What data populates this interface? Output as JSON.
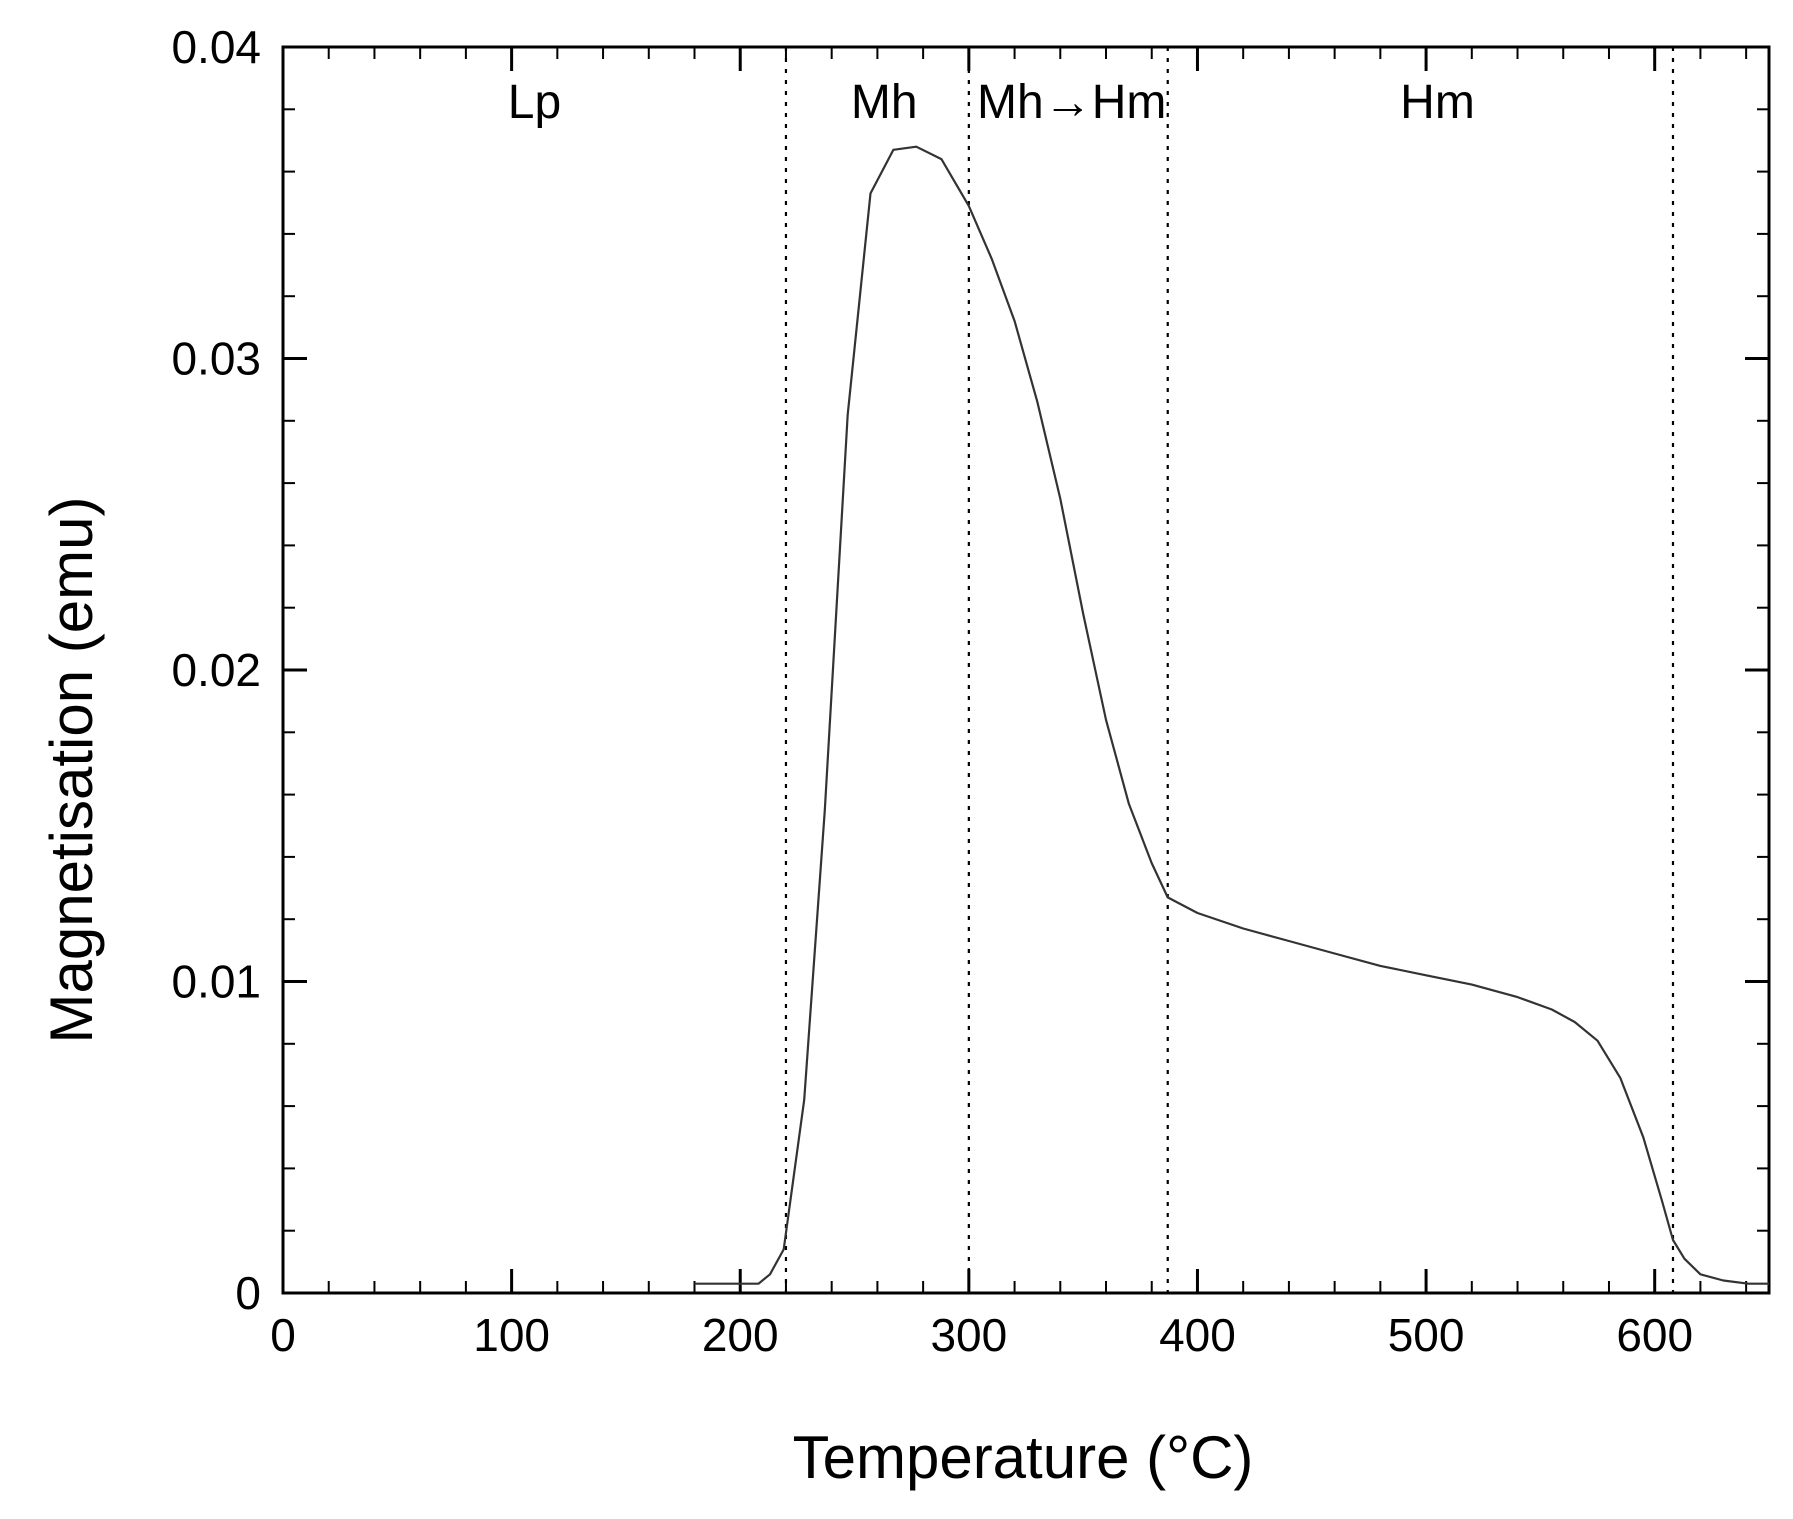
{
  "chart_data": {
    "type": "line",
    "title": "",
    "xlabel": "Temperature (°C)",
    "ylabel": "Magnetisation (emu)",
    "xlim": [
      0,
      650
    ],
    "ylim": [
      0,
      0.04
    ],
    "x_ticks": [
      0,
      100,
      200,
      300,
      400,
      500,
      600
    ],
    "x_tick_labels": [
      "0",
      "100",
      "200",
      "300",
      "400",
      "500",
      "600"
    ],
    "y_ticks": [
      0,
      0.01,
      0.02,
      0.03,
      0.04
    ],
    "y_tick_labels": [
      "0",
      "0.01",
      "0.02",
      "0.03",
      "0.04"
    ],
    "x_minor_step": 20,
    "y_minor_step": 0.002,
    "grid": false,
    "legend": "none",
    "line_color": "#333333",
    "boundaries": [
      {
        "x": 220
      },
      {
        "x": 300
      },
      {
        "x": 387
      },
      {
        "x": 608
      }
    ],
    "regions": [
      {
        "label": "Lp",
        "x": 110
      },
      {
        "label": "Mh",
        "x": 263
      },
      {
        "label": "Mh→Hm",
        "x": 345
      },
      {
        "label": "Hm",
        "x": 505
      }
    ],
    "series": [
      {
        "values": [
          [
            180,
            0.0003
          ],
          [
            195,
            0.0003
          ],
          [
            208,
            0.0003
          ],
          [
            213,
            0.0006
          ],
          [
            219,
            0.0014
          ],
          [
            228,
            0.0062
          ],
          [
            237,
            0.0155
          ],
          [
            247,
            0.0282
          ],
          [
            257,
            0.0353
          ],
          [
            267,
            0.0367
          ],
          [
            277,
            0.0368
          ],
          [
            288,
            0.0364
          ],
          [
            300,
            0.0349
          ],
          [
            310,
            0.0332
          ],
          [
            320,
            0.0312
          ],
          [
            330,
            0.0286
          ],
          [
            340,
            0.0255
          ],
          [
            350,
            0.0218
          ],
          [
            360,
            0.0184
          ],
          [
            370,
            0.0157
          ],
          [
            380,
            0.0138
          ],
          [
            387,
            0.0127
          ],
          [
            400,
            0.0122
          ],
          [
            420,
            0.0117
          ],
          [
            440,
            0.0113
          ],
          [
            460,
            0.0109
          ],
          [
            480,
            0.0105
          ],
          [
            500,
            0.0102
          ],
          [
            520,
            0.0099
          ],
          [
            540,
            0.0095
          ],
          [
            555,
            0.0091
          ],
          [
            565,
            0.0087
          ],
          [
            575,
            0.0081
          ],
          [
            585,
            0.0069
          ],
          [
            595,
            0.005
          ],
          [
            603,
            0.003
          ],
          [
            608,
            0.0017
          ],
          [
            613,
            0.0011
          ],
          [
            620,
            0.0006
          ],
          [
            630,
            0.0004
          ],
          [
            641,
            0.0003
          ],
          [
            650,
            0.0003
          ]
        ]
      }
    ]
  }
}
